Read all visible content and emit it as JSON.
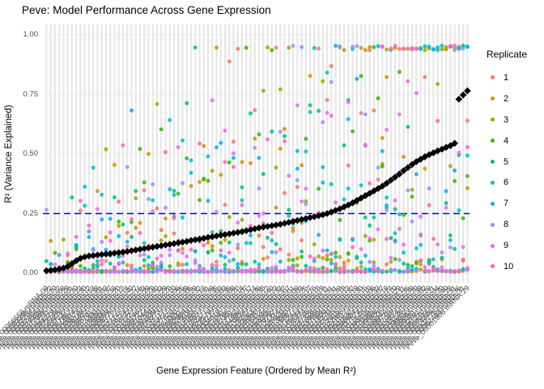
{
  "title": "Peve: Model Performance Across Gene Expression",
  "y_axis": {
    "label": "R² (Variance Explained)",
    "ticks": [
      {
        "label": "0.00",
        "value": 0.0
      },
      {
        "label": "0.25",
        "value": 0.25
      },
      {
        "label": "0.50",
        "value": 0.5
      },
      {
        "label": "0.75",
        "value": 0.75
      },
      {
        "label": "1.00",
        "value": 1.0
      }
    ]
  },
  "x_axis": {
    "label": "Gene Expression Feature (Ordered by Mean R²)",
    "tick_labels_note": "about 100 rotated gene-ID tick labels, heavily overlapping and illegible",
    "tick_label_pattern": "Peve_000#####.mRNA.##"
  },
  "legend": {
    "title": "Replicate",
    "items": [
      {
        "label": "1",
        "color": "#F8766D"
      },
      {
        "label": "2",
        "color": "#D89000"
      },
      {
        "label": "3",
        "color": "#A3A500"
      },
      {
        "label": "4",
        "color": "#39B600"
      },
      {
        "label": "5",
        "color": "#00BF7D"
      },
      {
        "label": "6",
        "color": "#00BFC4"
      },
      {
        "label": "7",
        "color": "#00B0F6"
      },
      {
        "label": "8",
        "color": "#9590FF"
      },
      {
        "label": "9",
        "color": "#E76BF3"
      },
      {
        "label": "10",
        "color": "#FF62BC"
      }
    ]
  },
  "chart_data": {
    "type": "scatter",
    "title": "Peve: Model Performance Across Gene Expression",
    "xlabel": "Gene Expression Feature (Ordered by Mean R²)",
    "ylabel": "R² (Variance Explained)",
    "ylim": [
      0,
      1
    ],
    "y_ticks": [
      0.0,
      0.25,
      0.5,
      0.75,
      1.0
    ],
    "grid": "light vertical line per feature, faint horizontal lines at major ticks",
    "legend_position": "right",
    "n_features": 100,
    "n_replicates": 10,
    "replicate_labels": [
      "1",
      "2",
      "3",
      "4",
      "5",
      "6",
      "7",
      "8",
      "9",
      "10"
    ],
    "replicate_colors": [
      "#F8766D",
      "#D89000",
      "#A3A500",
      "#39B600",
      "#00BF7D",
      "#00BFC4",
      "#00B0F6",
      "#9590FF",
      "#E76BF3",
      "#FF62BC"
    ],
    "reference_line": {
      "y": 0.25,
      "color": "#0000FF",
      "style": "dashed"
    },
    "mean_marker": {
      "shape": "diamond",
      "color": "#000000"
    },
    "mean_r2_by_feature": [
      0.01,
      0.012,
      0.014,
      0.017,
      0.021,
      0.028,
      0.04,
      0.052,
      0.062,
      0.068,
      0.072,
      0.074,
      0.076,
      0.078,
      0.08,
      0.082,
      0.084,
      0.086,
      0.088,
      0.091,
      0.094,
      0.097,
      0.1,
      0.103,
      0.106,
      0.109,
      0.112,
      0.115,
      0.118,
      0.121,
      0.124,
      0.127,
      0.13,
      0.133,
      0.137,
      0.14,
      0.143,
      0.146,
      0.15,
      0.153,
      0.156,
      0.159,
      0.162,
      0.165,
      0.168,
      0.171,
      0.174,
      0.178,
      0.182,
      0.186,
      0.19,
      0.193,
      0.196,
      0.199,
      0.202,
      0.205,
      0.209,
      0.213,
      0.217,
      0.221,
      0.225,
      0.229,
      0.233,
      0.237,
      0.241,
      0.245,
      0.25,
      0.256,
      0.263,
      0.27,
      0.278,
      0.286,
      0.295,
      0.305,
      0.315,
      0.325,
      0.335,
      0.345,
      0.355,
      0.365,
      0.377,
      0.39,
      0.403,
      0.416,
      0.43,
      0.443,
      0.456,
      0.468,
      0.478,
      0.488,
      0.497,
      0.505,
      0.513,
      0.52,
      0.528,
      0.535,
      0.545,
      0.73,
      0.748,
      0.765
    ],
    "scatter_points_note": "one point per replicate per feature (~1000 points); individual values span 0 to ~0.95, dense near 0, spread widens toward high-mean features; exact per-point values not legible in source",
    "scatter_seed": 11,
    "scatter_max": 0.955
  }
}
